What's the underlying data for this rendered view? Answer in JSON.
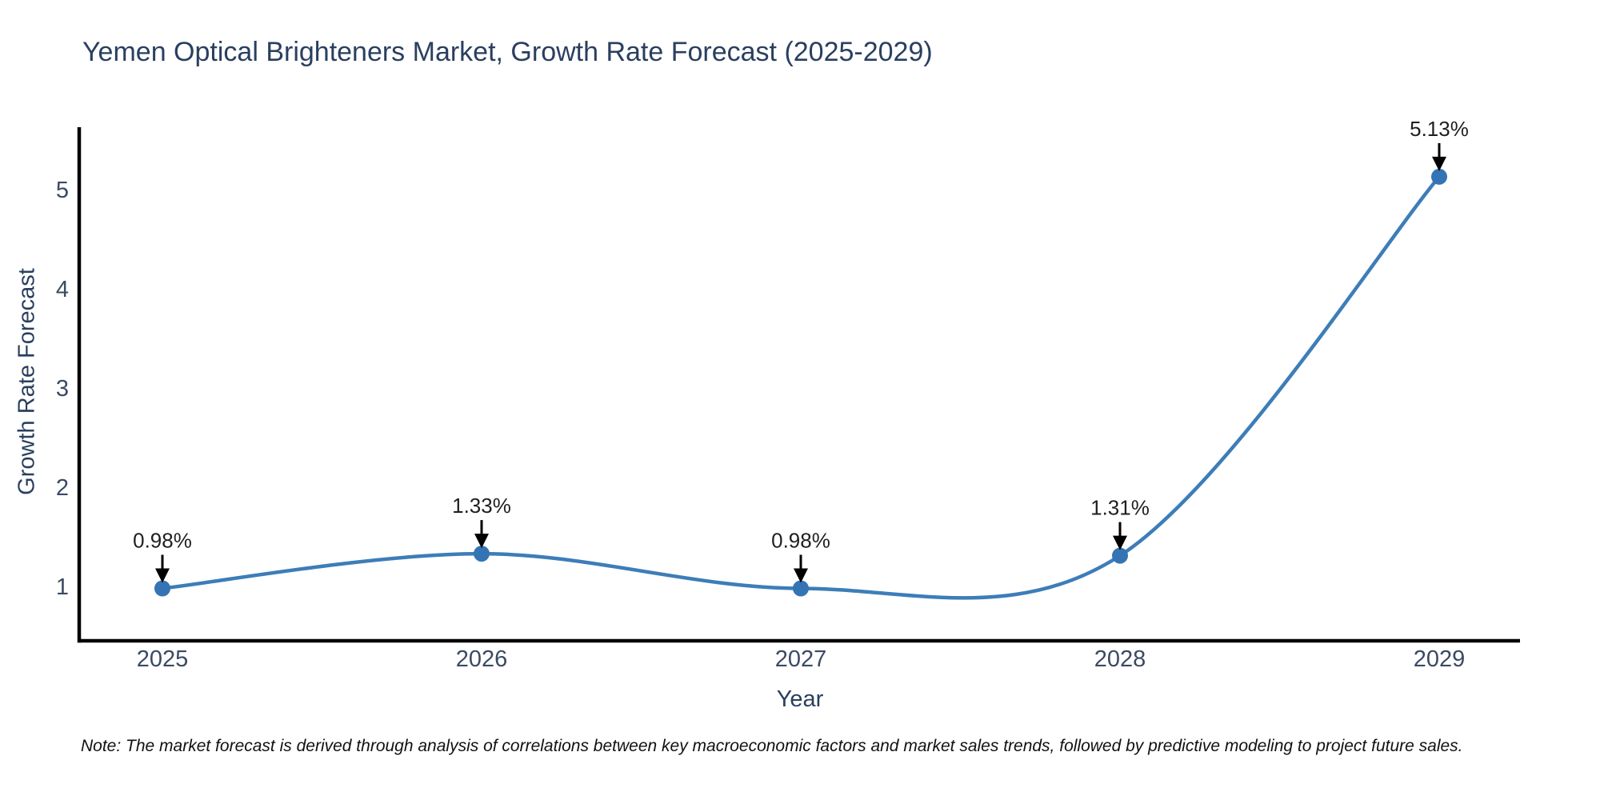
{
  "page": {
    "background": "#ffffff"
  },
  "chart_data": {
    "type": "line",
    "title": "Yemen Optical Brighteners Market, Growth Rate Forecast (2025-2029)",
    "xlabel": "Year",
    "ylabel": "Growth Rate Forecast",
    "categories": [
      "2025",
      "2026",
      "2027",
      "2028",
      "2029"
    ],
    "series": [
      {
        "name": "Growth Rate Forecast",
        "values": [
          0.98,
          1.33,
          0.98,
          1.31,
          5.13
        ],
        "point_labels": [
          "0.98%",
          "1.33%",
          "0.98%",
          "1.31%",
          "5.13%"
        ]
      }
    ],
    "yticks": [
      1,
      2,
      3,
      4,
      5
    ],
    "ylim": [
      0.55,
      5.65
    ],
    "line_shape": "spline",
    "grid": false,
    "legend": "none",
    "annotation_style": "label-with-arrow-pointing-down-to-point",
    "colors": {
      "line": "#3d7db8",
      "marker": "#3474b4",
      "axis": "#000000",
      "title_text": "#2a3f5f",
      "axis_title_text": "#2a3f5f",
      "tick_text": "#3b4a63",
      "annotation_text": "#1f1f1f",
      "arrow": "#000000",
      "note_text": "#111111"
    }
  },
  "note": {
    "text": "Note: The market forecast is derived through analysis of correlations between key macroeconomic factors and market sales trends, followed by predictive modeling to project future sales."
  }
}
